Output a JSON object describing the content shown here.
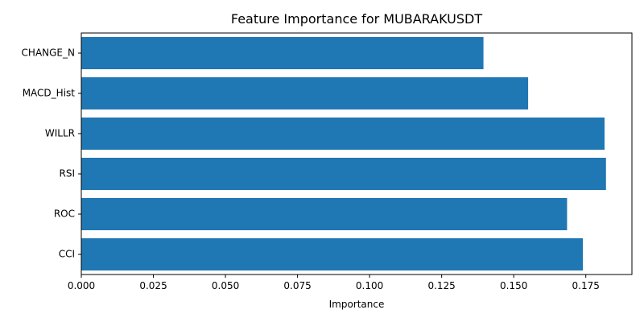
{
  "chart_data": {
    "type": "bar",
    "orientation": "horizontal",
    "title": "Feature Importance for MUBARAKUSDT",
    "xlabel": "Importance",
    "ylabel": "",
    "categories": [
      "CCI",
      "ROC",
      "RSI",
      "WILLR",
      "MACD_Hist",
      "CHANGE_N"
    ],
    "values": [
      0.174,
      0.1685,
      0.182,
      0.1815,
      0.155,
      0.1395
    ],
    "xlim": [
      0,
      0.191
    ],
    "xticks": [
      "0.000",
      "0.025",
      "0.050",
      "0.075",
      "0.100",
      "0.125",
      "0.150",
      "0.175"
    ],
    "grid": false,
    "bar_color": "#1f77b4"
  }
}
